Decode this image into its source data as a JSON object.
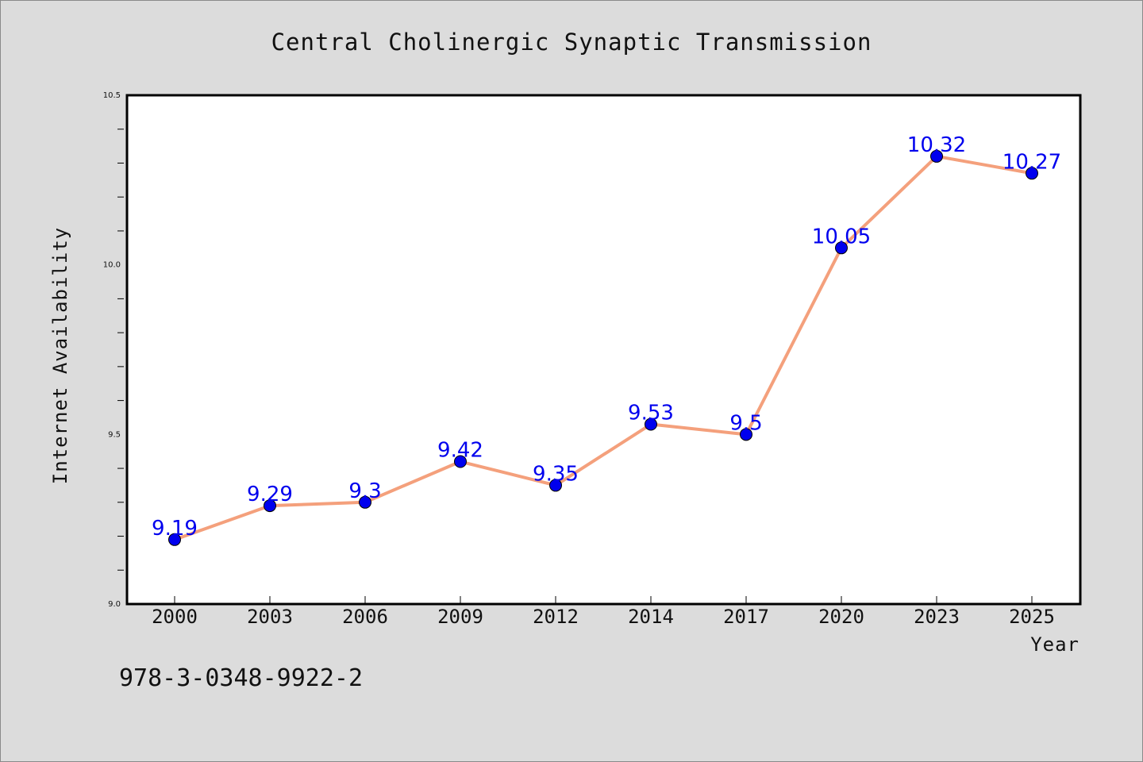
{
  "chart_data": {
    "type": "line",
    "title": "Central Cholinergic Synaptic Transmission",
    "xlabel": "Year",
    "ylabel": "Internet Availability",
    "categories": [
      "2000",
      "2003",
      "2006",
      "2009",
      "2012",
      "2014",
      "2017",
      "2020",
      "2023",
      "2025"
    ],
    "series": [
      {
        "values": [
          9.19,
          9.29,
          9.3,
          9.42,
          9.35,
          9.53,
          9.5,
          10.05,
          10.32,
          10.27
        ],
        "data_labels": [
          "9.19",
          "9.29",
          "9.3",
          "9.42",
          "9.35",
          "9.53",
          "9.5",
          "10.05",
          "10.32",
          "10.27"
        ]
      }
    ],
    "ylim": [
      9.0,
      10.5
    ],
    "yticks_major": [
      "9.0",
      "9.5",
      "10.0",
      "10.5"
    ],
    "ytick_major_values": [
      9.0,
      9.5,
      10.0,
      10.5
    ],
    "ytick_minor_step": 0.1,
    "grid": false,
    "legend": "none",
    "colors": {
      "line": "#f4a07c",
      "marker": "#0000ee",
      "data_label": "#0000ee",
      "background": "#dcdcdc",
      "plot_area": "#ffffff"
    },
    "annotation": "978-3-0348-9922-2"
  }
}
